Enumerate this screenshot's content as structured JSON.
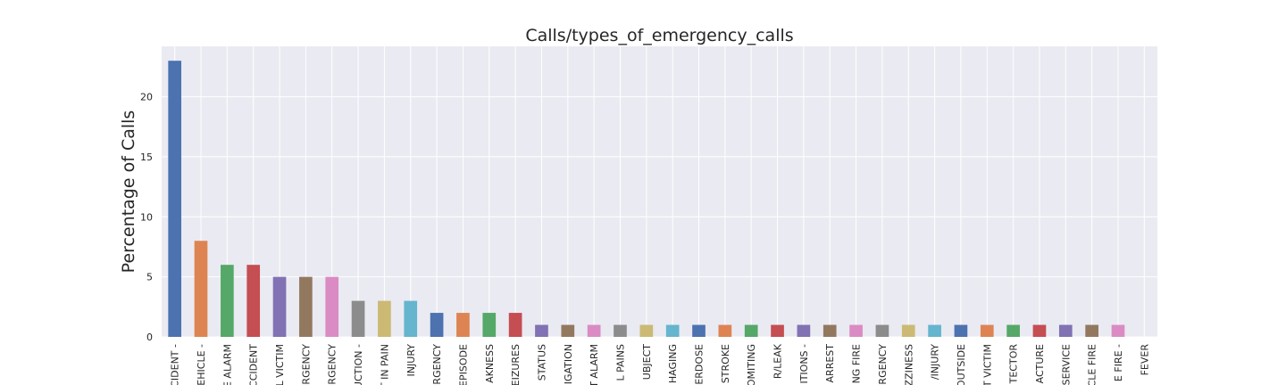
{
  "chart_data": {
    "type": "bar",
    "title": "Calls/types_of_emergency_calls",
    "xlabel": "",
    "ylabel": "Percentage of Calls",
    "ylim": [
      0,
      24.2
    ],
    "yticks": [
      0,
      5,
      10,
      15,
      20
    ],
    "grid": true,
    "categories": [
      "CIDENT -",
      "EHICLE -",
      "E ALARM",
      "CCIDENT",
      "L VICTIM",
      "ERGENCY",
      "ERGENCY",
      "UCTION -",
      "T IN PAIN",
      "INJURY",
      "ERGENCY",
      "EPISODE",
      "AKNESS",
      "EIZURES",
      "STATUS",
      "IGATION",
      "T ALARM",
      "L PAINS",
      "UBJECT",
      "HAGING",
      "ERDOSE",
      "STROKE",
      "OMITING",
      "R/LEAK",
      "ITIONS -",
      "ARREST",
      "NG FIRE",
      "ERGENCY",
      "ZZINESS",
      "/INJURY",
      "OUTSIDE",
      "T VICTIM",
      "TECTOR",
      "ACTURE",
      "SERVICE",
      "CLE FIRE",
      "E FIRE -",
      "FEVER"
    ],
    "values": [
      23,
      8,
      6,
      6,
      5,
      5,
      5,
      3,
      3,
      3,
      2,
      2,
      2,
      2,
      1,
      1,
      1,
      1,
      1,
      1,
      1,
      1,
      1,
      1,
      1,
      1,
      1,
      1,
      1,
      1,
      1,
      1,
      1,
      1,
      1,
      1,
      1,
      0
    ],
    "colors": [
      "#4c72b0",
      "#dd8452",
      "#55a868",
      "#c44e52",
      "#8172b3",
      "#937860",
      "#da8bc3",
      "#8c8c8c",
      "#ccb974",
      "#64b5cd"
    ]
  }
}
